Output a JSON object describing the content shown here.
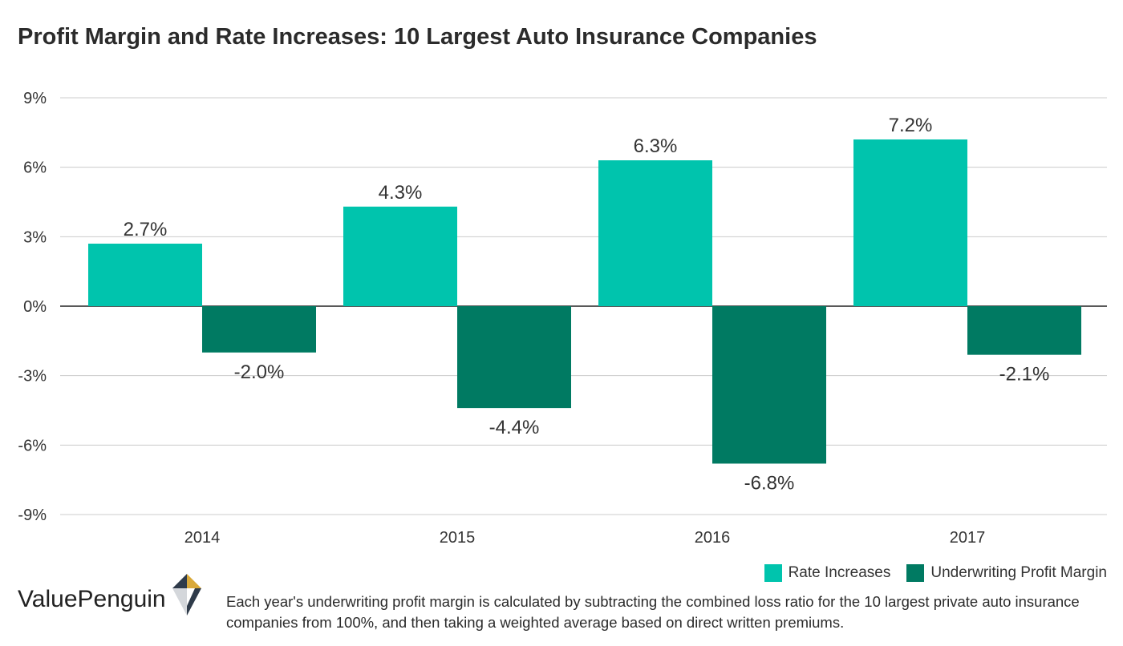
{
  "title": "Profit Margin and Rate Increases: 10 Largest Auto Insurance Companies",
  "brand": {
    "name": "ValuePenguin",
    "logo_icon": "penguin-diamond-logo-icon"
  },
  "footnote": "Each year's underwriting profit margin is calculated by subtracting the combined loss ratio for the 10 largest private auto insurance companies from 100%, and then taking a weighted average based on direct written premiums.",
  "colors": {
    "rate_increases": "#00c4ad",
    "underwriting_margin": "#007a62",
    "grid": "#cccccc",
    "logo_gold": "#d9a93a",
    "logo_navy": "#2f3b4a"
  },
  "chart_data": {
    "type": "bar",
    "title": "Profit Margin and Rate Increases: 10 Largest Auto Insurance Companies",
    "categories": [
      "2014",
      "2015",
      "2016",
      "2017"
    ],
    "series": [
      {
        "name": "Rate Increases",
        "values": [
          2.7,
          4.3,
          6.3,
          7.2
        ],
        "labels": [
          "2.7%",
          "4.3%",
          "6.3%",
          "7.2%"
        ],
        "color": "#00c4ad"
      },
      {
        "name": "Underwriting Profit Margin",
        "values": [
          -2.0,
          -4.4,
          -6.8,
          -2.1
        ],
        "labels": [
          "-2.0%",
          "-4.4%",
          "-6.8%",
          "-2.1%"
        ],
        "color": "#007a62"
      }
    ],
    "ylim": [
      -9,
      9
    ],
    "yticks": [
      9,
      6,
      3,
      0,
      -3,
      -6,
      -9
    ],
    "ytick_labels": [
      "9%",
      "6%",
      "3%",
      "0%",
      "-3%",
      "-6%",
      "-9%"
    ],
    "grid": true,
    "legend_position": "bottom-right",
    "xlabel": "",
    "ylabel": ""
  }
}
